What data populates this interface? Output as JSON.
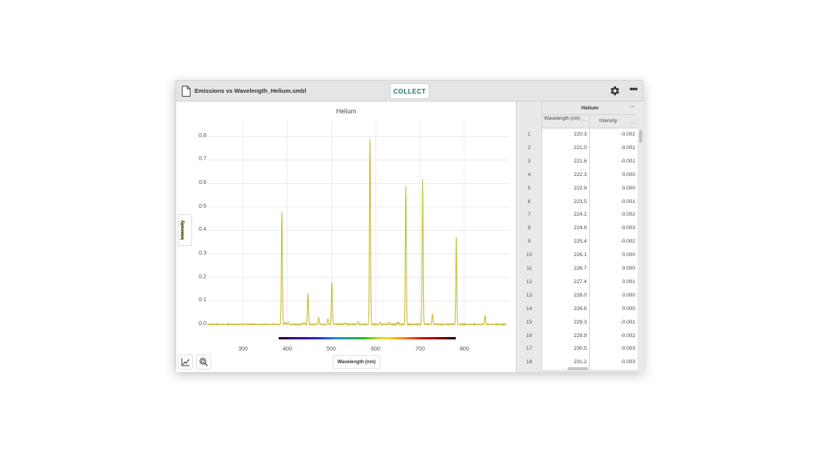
{
  "titlebar": {
    "file_name": "Emissions vs Wavelength_Helium.smbl",
    "collect_label": "COLLECT",
    "icons": {
      "file": "file-icon",
      "settings": "gear-icon",
      "more": "more-icon"
    }
  },
  "graph": {
    "title": "Helium",
    "y_axis_label": "Intensity",
    "x_axis_label": "Wavelength (nm)",
    "y_ticks": [
      "0.8",
      "0.7",
      "0.6",
      "0.5",
      "0.4",
      "0.3",
      "0.2",
      "0.1",
      "0.0"
    ],
    "x_ticks": [
      "300",
      "400",
      "500",
      "600",
      "700",
      "800"
    ],
    "series_color": "#c9c13a",
    "tools": {
      "graph_options": "graph-options-icon",
      "zoom": "zoom-icon"
    }
  },
  "table": {
    "group_title": "Helium",
    "columns": [
      "Wavelength (nm)",
      "Intensity"
    ],
    "rows": [
      {
        "n": "1",
        "wavelength": "220.3",
        "intensity": "-0.002"
      },
      {
        "n": "2",
        "wavelength": "221.0",
        "intensity": "-0.001"
      },
      {
        "n": "3",
        "wavelength": "221.6",
        "intensity": "-0.001"
      },
      {
        "n": "4",
        "wavelength": "222.3",
        "intensity": "0.000"
      },
      {
        "n": "5",
        "wavelength": "222.9",
        "intensity": "0.000"
      },
      {
        "n": "6",
        "wavelength": "223.5",
        "intensity": "-0.001"
      },
      {
        "n": "7",
        "wavelength": "224.2",
        "intensity": "-0.002"
      },
      {
        "n": "8",
        "wavelength": "224.8",
        "intensity": "-0.003"
      },
      {
        "n": "9",
        "wavelength": "225.4",
        "intensity": "-0.002"
      },
      {
        "n": "10",
        "wavelength": "226.1",
        "intensity": "0.000"
      },
      {
        "n": "11",
        "wavelength": "226.7",
        "intensity": "0.000"
      },
      {
        "n": "12",
        "wavelength": "227.4",
        "intensity": "0.001"
      },
      {
        "n": "13",
        "wavelength": "228.0",
        "intensity": "0.000"
      },
      {
        "n": "14",
        "wavelength": "228.6",
        "intensity": "0.000"
      },
      {
        "n": "15",
        "wavelength": "229.3",
        "intensity": "-0.001"
      },
      {
        "n": "16",
        "wavelength": "229.9",
        "intensity": "-0.002"
      },
      {
        "n": "17",
        "wavelength": "230.5",
        "intensity": "-0.003"
      },
      {
        "n": "18",
        "wavelength": "231.2",
        "intensity": "-0.003"
      }
    ]
  },
  "chart_data": {
    "type": "line",
    "title": "Helium",
    "xlabel": "Wavelength (nm)",
    "ylabel": "Intensity",
    "xlim": [
      220,
      900
    ],
    "ylim": [
      -0.01,
      0.85
    ],
    "x_ticks": [
      300,
      400,
      500,
      600,
      700,
      800
    ],
    "y_ticks": [
      0.0,
      0.1,
      0.2,
      0.3,
      0.4,
      0.5,
      0.6,
      0.7,
      0.8
    ],
    "grid": true,
    "legend": "none",
    "series": [
      {
        "name": "Helium Intensity",
        "color": "#c9c13a",
        "peaks": [
          {
            "x": 388,
            "y": 0.48
          },
          {
            "x": 447,
            "y": 0.13
          },
          {
            "x": 471,
            "y": 0.03
          },
          {
            "x": 492,
            "y": 0.025
          },
          {
            "x": 501,
            "y": 0.18
          },
          {
            "x": 587,
            "y": 0.79
          },
          {
            "x": 668,
            "y": 0.59
          },
          {
            "x": 706,
            "y": 0.62
          },
          {
            "x": 728,
            "y": 0.045
          },
          {
            "x": 782,
            "y": 0.37
          },
          {
            "x": 847,
            "y": 0.038
          }
        ],
        "baseline": 0.0
      }
    ],
    "annotations": [
      "Visible spectrum color bar from ~380 to ~780 nm"
    ]
  }
}
